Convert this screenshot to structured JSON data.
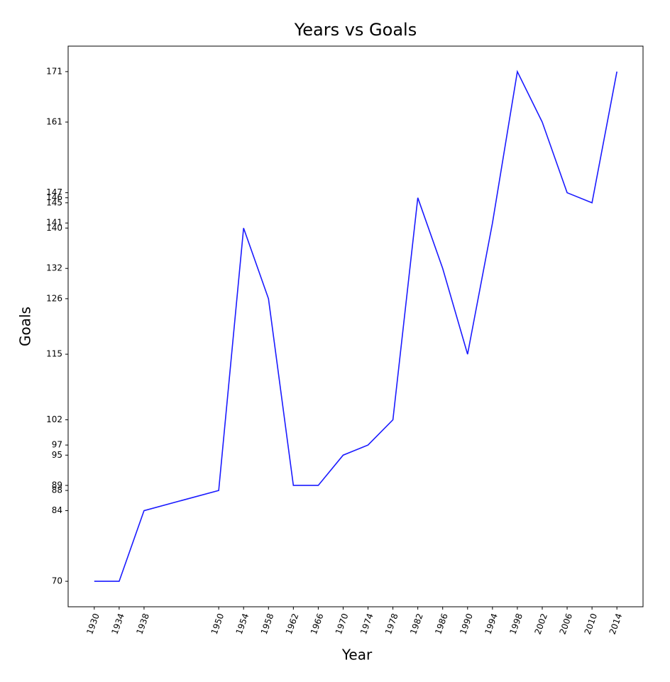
{
  "chart_data": {
    "type": "line",
    "title": "Years vs Goals",
    "x_label": "Year",
    "y_label": "Goals",
    "x": [
      1930,
      1934,
      1938,
      1950,
      1954,
      1958,
      1962,
      1966,
      1970,
      1974,
      1978,
      1982,
      1986,
      1990,
      1994,
      1998,
      2002,
      2006,
      2010,
      2014
    ],
    "series": [
      {
        "name": "Goals",
        "color": "#1a1aff",
        "values": [
          70,
          70,
          84,
          88,
          140,
          126,
          89,
          89,
          95,
          97,
          102,
          146,
          132,
          115,
          141,
          171,
          161,
          147,
          145,
          171
        ]
      }
    ],
    "xlim": [
      1925.8,
      2018.2
    ],
    "xticks": [
      1930,
      1934,
      1938,
      1950,
      1954,
      1958,
      1962,
      1966,
      1970,
      1974,
      1978,
      1982,
      1986,
      1990,
      1994,
      1998,
      2002,
      2006,
      2010,
      2014
    ],
    "ylim": [
      64.95,
      176.05
    ],
    "yticks": [
      70,
      84,
      88,
      89,
      95,
      97,
      102,
      115,
      126,
      132,
      140,
      141,
      145,
      146,
      147,
      161,
      171
    ],
    "grid": false
  }
}
